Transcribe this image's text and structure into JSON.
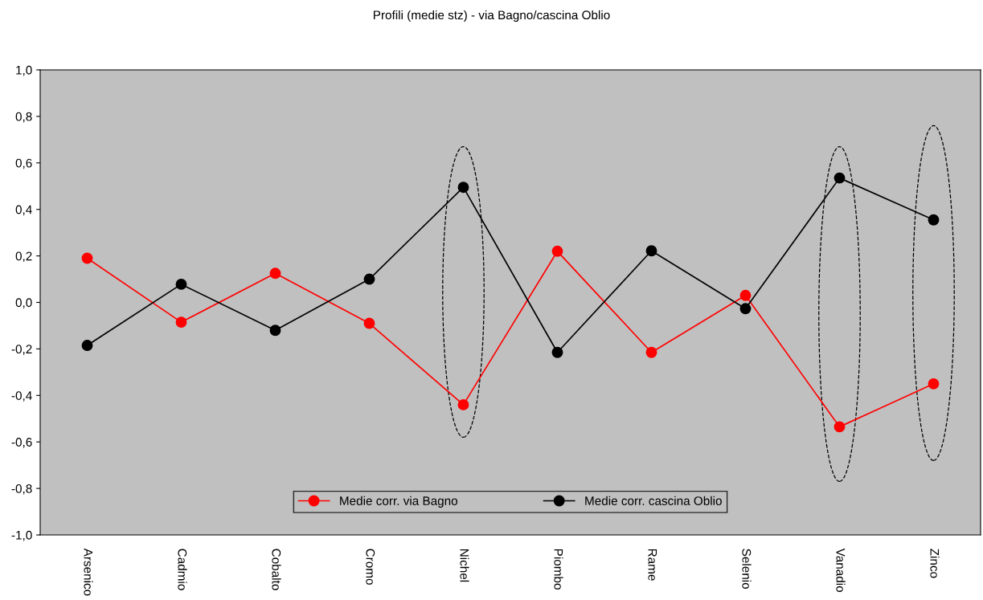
{
  "chart_data": {
    "type": "line",
    "title": "Profili (medie stz) - via Bagno/cascina Oblio",
    "categories": [
      "Arsenico",
      "Cadmio",
      "Cobalto",
      "Cromo",
      "Nichel",
      "Piombo",
      "Rame",
      "Selenio",
      "Vanadio",
      "Zinco"
    ],
    "series": [
      {
        "name": "Medie corr. via Bagno",
        "color": "#ff0000",
        "values": [
          0.19,
          -0.085,
          0.125,
          -0.09,
          -0.44,
          0.22,
          -0.215,
          0.03,
          -0.535,
          -0.35
        ]
      },
      {
        "name": "Medie corr. cascina Oblio",
        "color": "#000000",
        "values": [
          -0.185,
          0.078,
          -0.12,
          0.1,
          0.495,
          -0.215,
          0.222,
          -0.027,
          0.535,
          0.355
        ]
      }
    ],
    "ylim": [
      -1.0,
      1.0
    ],
    "yticks": [
      {
        "value": -1.0,
        "label": "-1,0"
      },
      {
        "value": -0.8,
        "label": "-0,8"
      },
      {
        "value": -0.6,
        "label": "-0,6"
      },
      {
        "value": -0.4,
        "label": "-0,4"
      },
      {
        "value": -0.2,
        "label": "-0,2"
      },
      {
        "value": 0.0,
        "label": "0,0"
      },
      {
        "value": 0.2,
        "label": "0,2"
      },
      {
        "value": 0.4,
        "label": "0,4"
      },
      {
        "value": 0.6,
        "label": "0,6"
      },
      {
        "value": 0.8,
        "label": "0,8"
      },
      {
        "value": 1.0,
        "label": "1,0"
      }
    ],
    "grid": false,
    "legend": "bottom",
    "marker": "circle",
    "line_style": "solid"
  }
}
